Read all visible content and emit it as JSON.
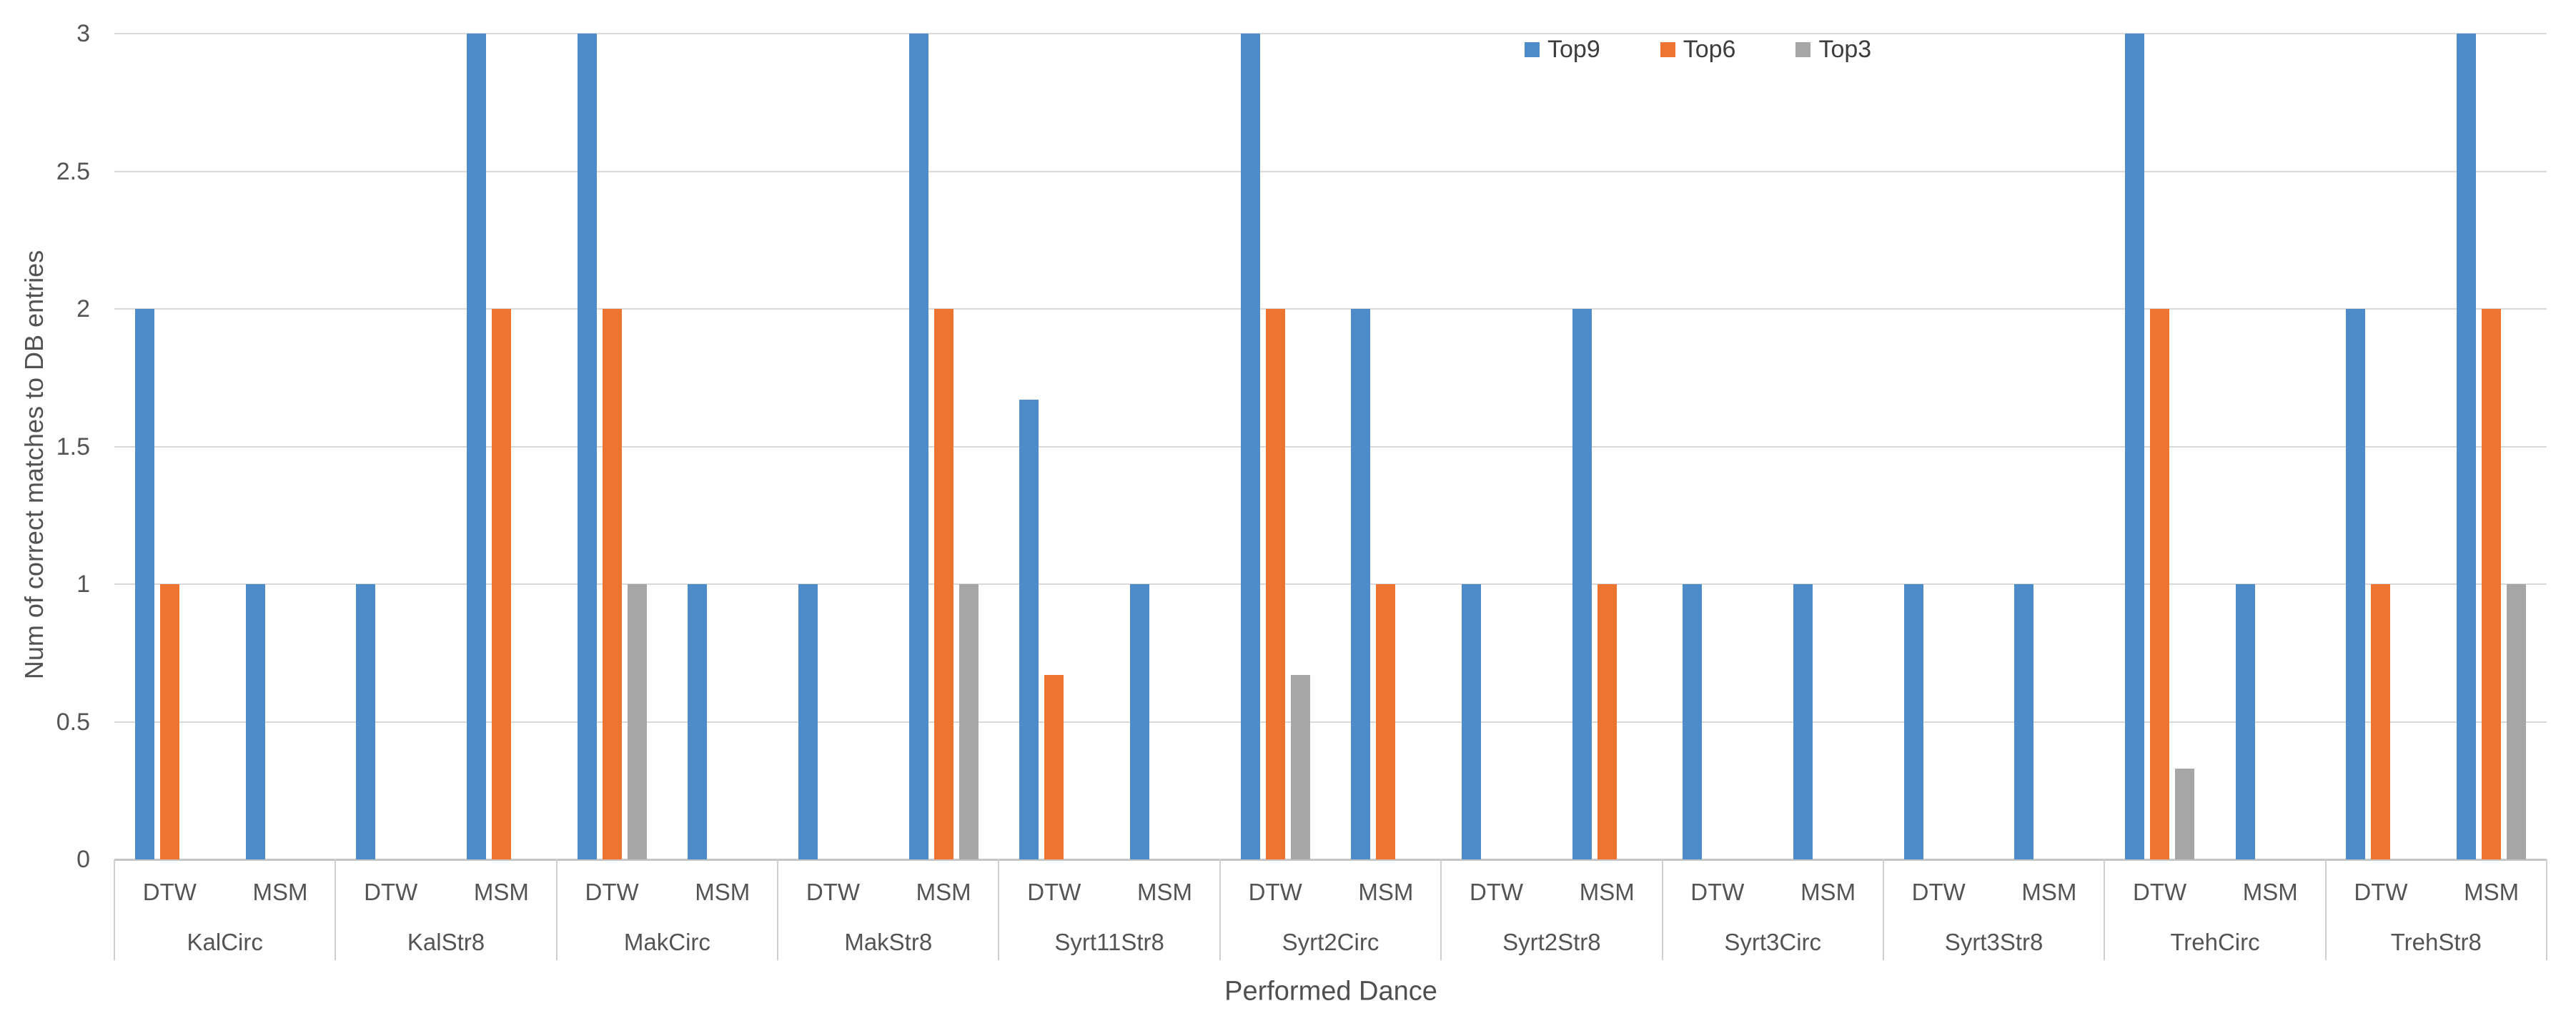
{
  "chart_data": {
    "type": "bar",
    "title": "",
    "xlabel": "Performed Dance",
    "ylabel": "Num of correct matches to DB entries",
    "ylim": [
      0,
      3
    ],
    "ytick_step": 0.5,
    "yticks": [
      "0",
      "0.5",
      "1",
      "1.5",
      "2",
      "2.5",
      "3"
    ],
    "grid": true,
    "legend_position": "top-right",
    "legend_labels": [
      "Top9",
      "Top6",
      "Top3"
    ],
    "groups": [
      "KalCirc",
      "KalStr8",
      "MakCirc",
      "MakStr8",
      "Syrt11Str8",
      "Syrt2Circ",
      "Syrt2Str8",
      "Syrt3Circ",
      "Syrt3Str8",
      "TrehCirc",
      "TrehStr8"
    ],
    "subgroups": [
      "DTW",
      "MSM"
    ],
    "series": [
      {
        "name": "Top9",
        "color": "#4d8bc9",
        "values": [
          [
            2,
            1
          ],
          [
            1,
            3
          ],
          [
            3,
            1
          ],
          [
            1,
            3
          ],
          [
            1.67,
            1
          ],
          [
            3,
            2
          ],
          [
            1,
            2
          ],
          [
            1,
            1
          ],
          [
            1,
            1
          ],
          [
            3,
            1
          ],
          [
            2,
            3
          ]
        ]
      },
      {
        "name": "Top6",
        "color": "#ed7431",
        "values": [
          [
            1,
            0
          ],
          [
            0,
            2
          ],
          [
            2,
            0
          ],
          [
            0,
            2
          ],
          [
            0.67,
            0
          ],
          [
            2,
            1
          ],
          [
            0,
            1
          ],
          [
            0,
            0
          ],
          [
            0,
            0
          ],
          [
            2,
            0
          ],
          [
            1,
            2
          ]
        ]
      },
      {
        "name": "Top3",
        "color": "#a6a6a6",
        "values": [
          [
            0,
            0
          ],
          [
            0,
            0
          ],
          [
            1,
            0
          ],
          [
            0,
            1
          ],
          [
            0,
            0
          ],
          [
            0.67,
            0
          ],
          [
            0,
            0
          ],
          [
            0,
            0
          ],
          [
            0,
            0
          ],
          [
            0.33,
            0
          ],
          [
            0,
            1
          ]
        ]
      }
    ],
    "colors": {
      "gridline": "#d9d9d9",
      "axis_line": "#c6c6c6",
      "divider": "#cfcfcf",
      "tick_text": "#545454",
      "legend_text": "#3d3d3d"
    }
  }
}
